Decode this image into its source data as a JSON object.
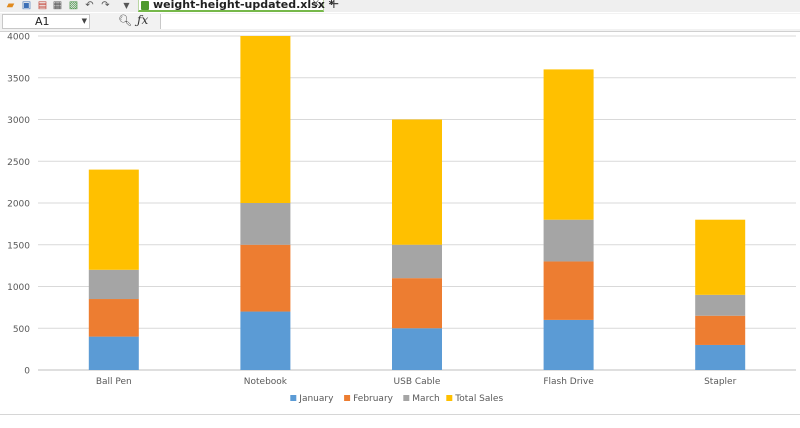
{
  "tab": {
    "label": "weight-height-updated.xlsx *",
    "close": "×",
    "add": "+"
  },
  "name_box": {
    "value": "A1"
  },
  "formula": {
    "fx_label": "ƒx",
    "value": ""
  },
  "colors": {
    "January": "#5b9bd5",
    "February": "#ed7d31",
    "March": "#a5a5a5",
    "Total Sales": "#ffc000"
  },
  "chart_data": {
    "type": "bar",
    "stacked": true,
    "categories": [
      "Ball Pen",
      "Notebook",
      "USB Cable",
      "Flash Drive",
      "Stapler"
    ],
    "series": [
      {
        "name": "January",
        "values": [
          400,
          700,
          500,
          600,
          300
        ]
      },
      {
        "name": "February",
        "values": [
          450,
          800,
          600,
          700,
          350
        ]
      },
      {
        "name": "March",
        "values": [
          350,
          500,
          400,
          500,
          250
        ]
      },
      {
        "name": "Total Sales",
        "values": [
          1200,
          2000,
          1500,
          1800,
          900
        ]
      }
    ],
    "ylim": [
      0,
      4000
    ],
    "yticks": [
      "0",
      "500",
      "1000",
      "1500",
      "2000",
      "2500",
      "3000",
      "3500",
      "4000"
    ],
    "grid": true,
    "legend": "bottom"
  }
}
